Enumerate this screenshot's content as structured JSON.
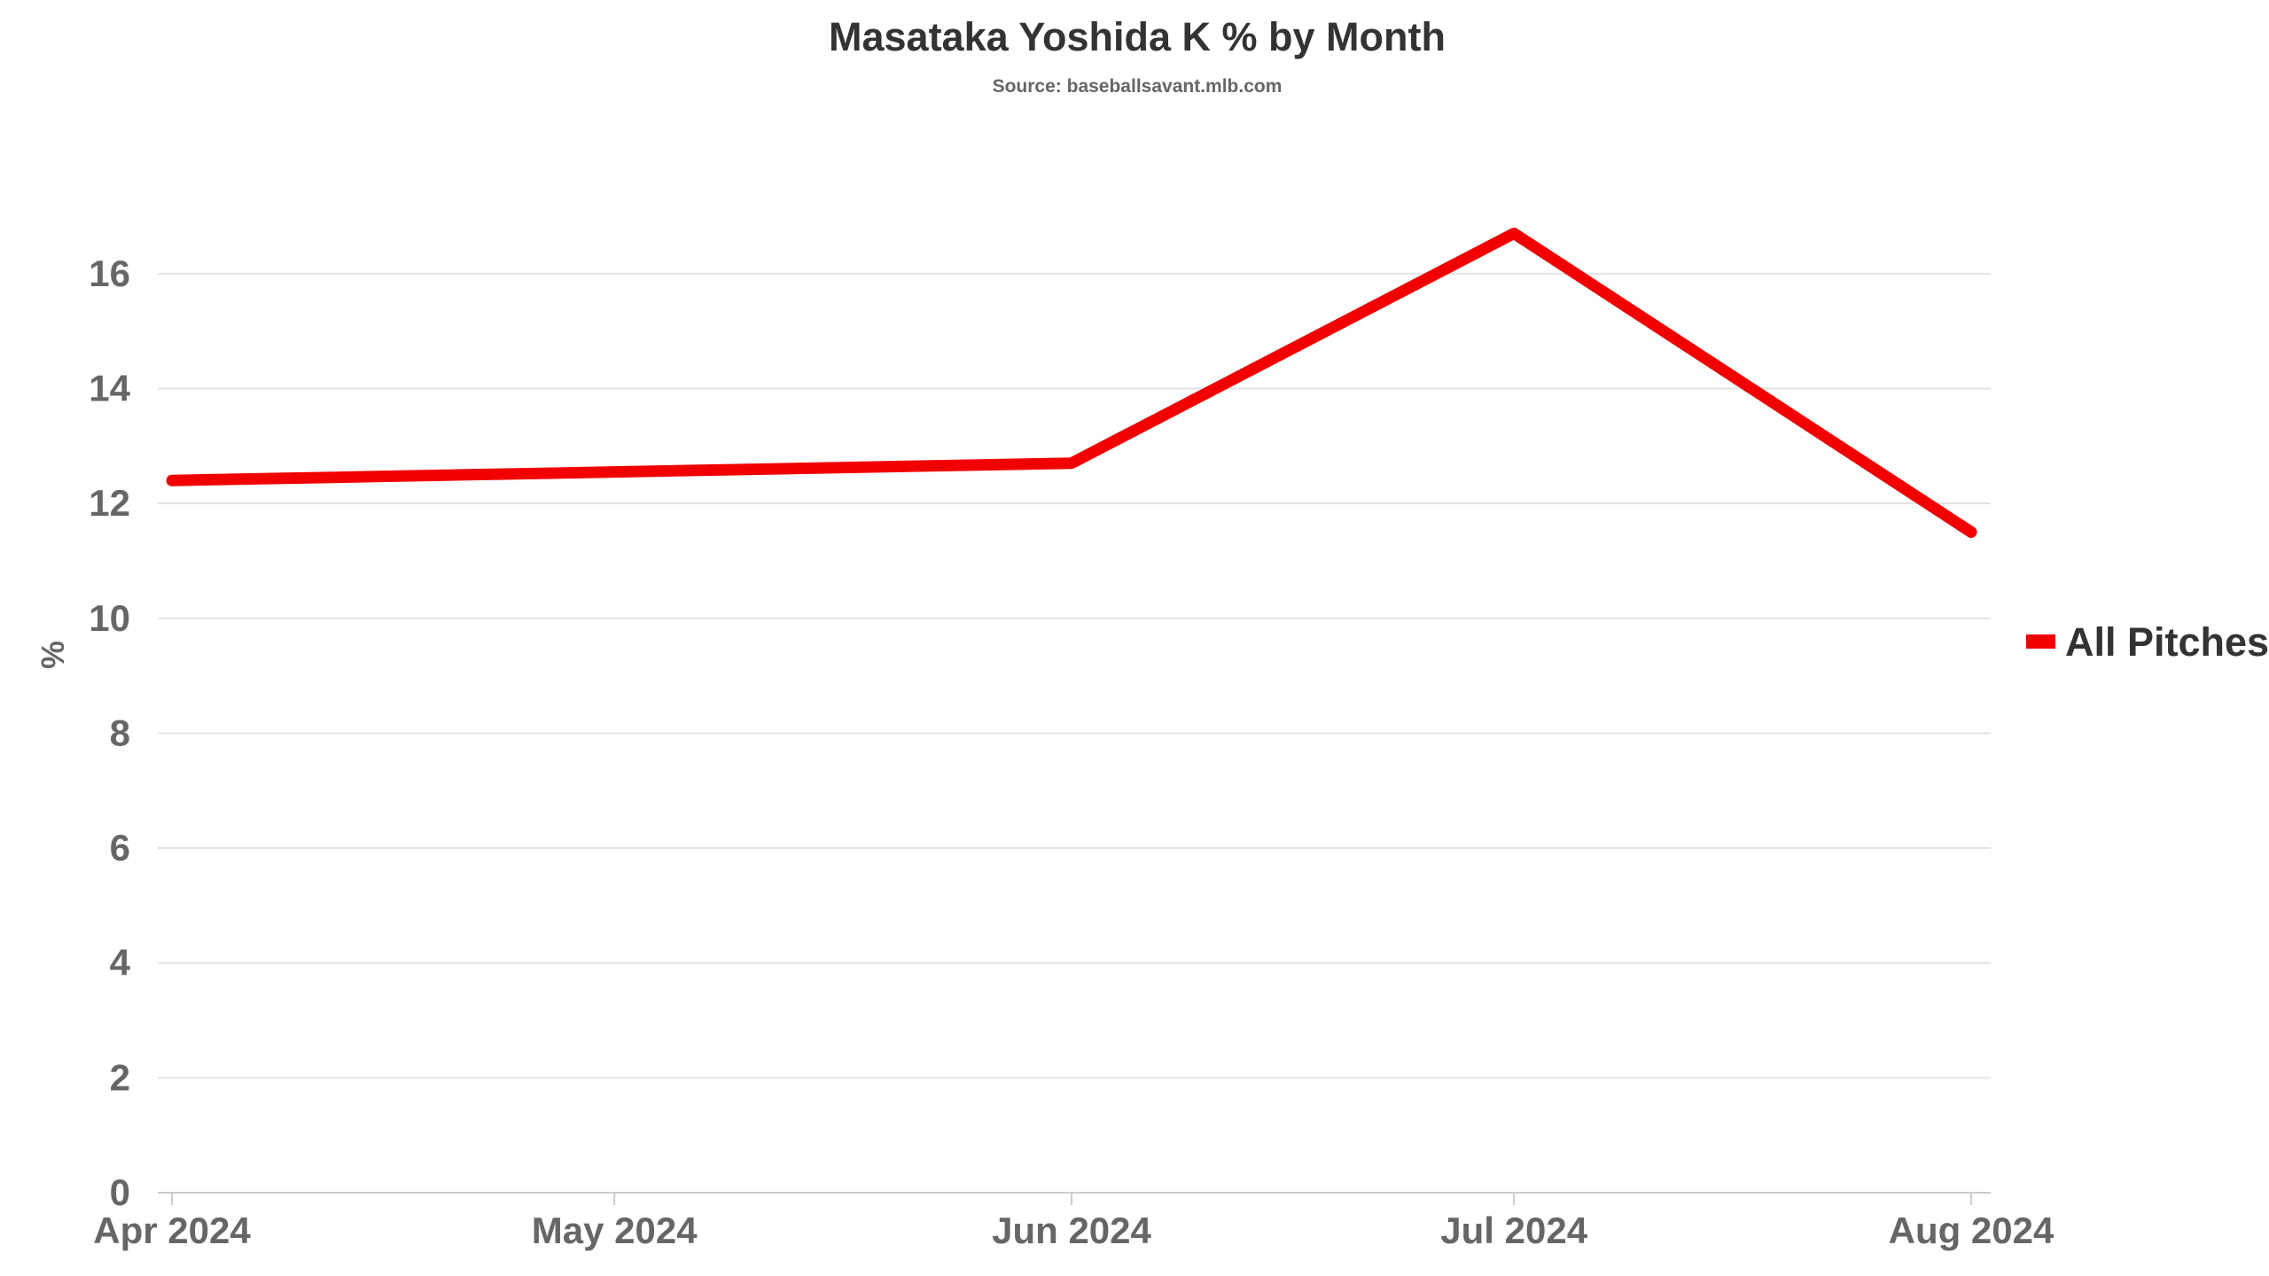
{
  "chart_data": {
    "type": "line",
    "title": "Masataka Yoshida K % by Month",
    "subtitle": "Source: baseballsavant.mlb.com",
    "xlabel": "",
    "ylabel": "%",
    "x": [
      "2024-04-01",
      "2024-05-01",
      "2024-06-01",
      "2024-07-01",
      "2024-08-01"
    ],
    "x_tick_labels": [
      "Apr 2024",
      "May 2024",
      "Jun 2024",
      "Jul 2024",
      "Aug 2024"
    ],
    "x_range": [
      "2024-04-01",
      "2024-08-01"
    ],
    "ylim": [
      0,
      17
    ],
    "y_ticks": [
      0,
      2,
      4,
      6,
      8,
      10,
      12,
      14,
      16
    ],
    "grid": "horizontal",
    "legend_position": "right",
    "series": [
      {
        "name": "All Pitches",
        "color": "#f20000",
        "points": [
          {
            "x": "2024-04-01",
            "y": 12.4
          },
          {
            "x": "2024-06-01",
            "y": 12.7
          },
          {
            "x": "2024-07-01",
            "y": 16.7
          },
          {
            "x": "2024-08-01",
            "y": 11.5
          }
        ]
      }
    ]
  }
}
